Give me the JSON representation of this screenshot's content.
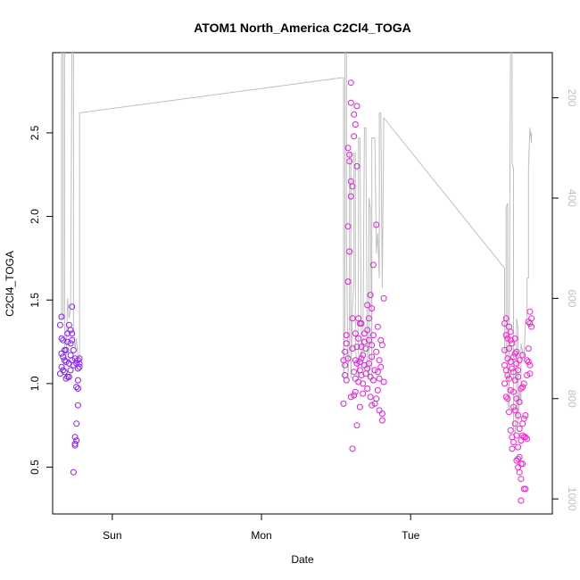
{
  "chart_data": {
    "type": "scatter",
    "title": "ATOM1 North_America C2Cl4_TOGA",
    "xlabel": "Date",
    "ylabel": "C2Cl4_TOGA",
    "x_ticks": [
      {
        "label": "Sun",
        "value": 0.0
      },
      {
        "label": "Mon",
        "value": 1.0
      },
      {
        "label": "Tue",
        "value": 2.0
      }
    ],
    "xlim": [
      -0.4,
      2.95
    ],
    "ylim": [
      0.22,
      2.98
    ],
    "y_ticks": [
      0.5,
      1.0,
      1.5,
      2.0,
      2.5
    ],
    "y2": {
      "reversed": true,
      "lim": [
        1030,
        110
      ],
      "ticks": [
        200,
        400,
        600,
        800,
        1000
      ],
      "line_color": "#bfbfbf"
    },
    "color_low": "#7a1fff",
    "color_high": "#ff1fd0",
    "points": [
      [
        -0.35,
        1.06
      ],
      [
        -0.35,
        1.35
      ],
      [
        -0.34,
        1.4
      ],
      [
        -0.34,
        1.27
      ],
      [
        -0.34,
        1.1
      ],
      [
        -0.34,
        1.18
      ],
      [
        -0.33,
        1.26
      ],
      [
        -0.33,
        1.16
      ],
      [
        -0.33,
        1.08
      ],
      [
        -0.32,
        1.2
      ],
      [
        -0.32,
        1.07
      ],
      [
        -0.32,
        1.14
      ],
      [
        -0.31,
        1.13
      ],
      [
        -0.31,
        1.03
      ],
      [
        -0.3,
        1.04
      ],
      [
        -0.3,
        1.3
      ],
      [
        -0.3,
        1.25
      ],
      [
        -0.29,
        1.35
      ],
      [
        -0.29,
        1.12
      ],
      [
        -0.29,
        1.04
      ],
      [
        -0.28,
        1.24
      ],
      [
        -0.28,
        1.08
      ],
      [
        -0.28,
        1.32
      ],
      [
        -0.27,
        1.3
      ],
      [
        -0.27,
        1.14
      ],
      [
        -0.27,
        1.46
      ],
      [
        -0.26,
        0.47
      ],
      [
        -0.26,
        1.2
      ],
      [
        -0.26,
        1.11
      ],
      [
        -0.25,
        0.64
      ],
      [
        -0.25,
        0.63
      ],
      [
        -0.25,
        0.68
      ],
      [
        -0.25,
        1.15
      ],
      [
        -0.24,
        0.66
      ],
      [
        -0.24,
        1.12
      ],
      [
        -0.24,
        0.98
      ],
      [
        -0.24,
        0.76
      ],
      [
        -0.23,
        0.87
      ],
      [
        -0.23,
        0.97
      ],
      [
        -0.23,
        1.09
      ],
      [
        -0.23,
        1.14
      ],
      [
        -0.23,
        1.02
      ],
      [
        -0.22,
        1.15
      ],
      [
        -0.22,
        1.12
      ],
      [
        -0.22,
        1.1
      ],
      [
        -0.27,
        1.26
      ],
      [
        -0.31,
        1.2
      ],
      [
        -0.28,
        1.17
      ],
      [
        1.55,
        0.88
      ],
      [
        1.55,
        1.14
      ],
      [
        1.56,
        1.19
      ],
      [
        1.56,
        1.05
      ],
      [
        1.56,
        1.11
      ],
      [
        1.57,
        1.29
      ],
      [
        1.57,
        1.24
      ],
      [
        1.57,
        1.02
      ],
      [
        1.58,
        2.41
      ],
      [
        1.58,
        1.94
      ],
      [
        1.58,
        1.61
      ],
      [
        1.58,
        1.15
      ],
      [
        1.59,
        2.37
      ],
      [
        1.59,
        2.33
      ],
      [
        1.59,
        1.79
      ],
      [
        1.6,
        2.8
      ],
      [
        1.6,
        2.68
      ],
      [
        1.6,
        2.21
      ],
      [
        1.6,
        2.12
      ],
      [
        1.6,
        0.92
      ],
      [
        1.61,
        0.61
      ],
      [
        1.61,
        2.18
      ],
      [
        1.61,
        1.21
      ],
      [
        1.61,
        1.39
      ],
      [
        1.62,
        2.61
      ],
      [
        1.62,
        2.48
      ],
      [
        1.62,
        1.07
      ],
      [
        1.62,
        0.93
      ],
      [
        1.63,
        2.55
      ],
      [
        1.63,
        1.14
      ],
      [
        1.63,
        1.03
      ],
      [
        1.63,
        0.95
      ],
      [
        1.64,
        2.66
      ],
      [
        1.64,
        2.3
      ],
      [
        1.64,
        1.22
      ],
      [
        1.64,
        1.12
      ],
      [
        1.64,
        0.75
      ],
      [
        1.65,
        1.39
      ],
      [
        1.65,
        1.27
      ],
      [
        1.65,
        1.01
      ],
      [
        1.66,
        1.08
      ],
      [
        1.66,
        0.86
      ],
      [
        1.66,
        1.13
      ],
      [
        1.67,
        1.36
      ],
      [
        1.67,
        1.15
      ],
      [
        1.67,
        1.22
      ],
      [
        1.67,
        1.05
      ],
      [
        1.68,
        0.94
      ],
      [
        1.68,
        1.17
      ],
      [
        1.68,
        1.0
      ],
      [
        1.69,
        1.3
      ],
      [
        1.69,
        1.25
      ],
      [
        1.69,
        1.11
      ],
      [
        1.7,
        1.06
      ],
      [
        1.7,
        1.21
      ],
      [
        1.71,
        1.32
      ],
      [
        1.71,
        0.97
      ],
      [
        1.71,
        1.09
      ],
      [
        1.72,
        1.39
      ],
      [
        1.72,
        1.12
      ],
      [
        1.72,
        1.26
      ],
      [
        1.73,
        0.92
      ],
      [
        1.73,
        1.04
      ],
      [
        1.73,
        1.53
      ],
      [
        1.74,
        1.23
      ],
      [
        1.74,
        0.87
      ],
      [
        1.74,
        1.16
      ],
      [
        1.75,
        1.71
      ],
      [
        1.75,
        1.29
      ],
      [
        1.75,
        1.02
      ],
      [
        1.76,
        0.88
      ],
      [
        1.76,
        1.08
      ],
      [
        1.77,
        1.95
      ],
      [
        1.77,
        1.19
      ],
      [
        1.77,
        0.91
      ],
      [
        1.78,
        1.34
      ],
      [
        1.78,
        1.07
      ],
      [
        1.78,
        0.96
      ],
      [
        1.79,
        1.14
      ],
      [
        1.79,
        1.03
      ],
      [
        1.79,
        0.84
      ],
      [
        1.8,
        1.26
      ],
      [
        1.8,
        1.1
      ],
      [
        1.81,
        1.23
      ],
      [
        1.81,
        0.78
      ],
      [
        1.81,
        0.82
      ],
      [
        1.82,
        1.51
      ],
      [
        1.82,
        1.01
      ],
      [
        1.74,
        1.45
      ],
      [
        1.71,
        1.47
      ],
      [
        1.66,
        1.36
      ],
      [
        1.63,
        1.3
      ],
      [
        2.63,
        1.0
      ],
      [
        2.63,
        1.36
      ],
      [
        2.63,
        1.2
      ],
      [
        2.63,
        1.11
      ],
      [
        2.64,
        1.39
      ],
      [
        2.64,
        1.29
      ],
      [
        2.64,
        1.08
      ],
      [
        2.64,
        0.92
      ],
      [
        2.65,
        1.27
      ],
      [
        2.65,
        1.15
      ],
      [
        2.65,
        1.05
      ],
      [
        2.65,
        0.91
      ],
      [
        2.66,
        0.83
      ],
      [
        2.66,
        1.34
      ],
      [
        2.66,
        1.21
      ],
      [
        2.66,
        1.03
      ],
      [
        2.67,
        1.26
      ],
      [
        2.67,
        1.13
      ],
      [
        2.67,
        0.96
      ],
      [
        2.67,
        0.72
      ],
      [
        2.68,
        0.68
      ],
      [
        2.68,
        1.09
      ],
      [
        2.68,
        0.61
      ],
      [
        2.68,
        1.24
      ],
      [
        2.69,
        0.86
      ],
      [
        2.69,
        1.16
      ],
      [
        2.69,
        0.95
      ],
      [
        2.69,
        1.07
      ],
      [
        2.7,
        0.76
      ],
      [
        2.7,
        0.84
      ],
      [
        2.7,
        1.27
      ],
      [
        2.7,
        1.02
      ],
      [
        2.71,
        0.54
      ],
      [
        2.71,
        0.69
      ],
      [
        2.71,
        0.91
      ],
      [
        2.71,
        1.12
      ],
      [
        2.71,
        1.19
      ],
      [
        2.72,
        0.5
      ],
      [
        2.72,
        0.55
      ],
      [
        2.72,
        0.81
      ],
      [
        2.72,
        1.08
      ],
      [
        2.72,
        0.62
      ],
      [
        2.73,
        0.47
      ],
      [
        2.73,
        0.56
      ],
      [
        2.73,
        0.73
      ],
      [
        2.73,
        0.89
      ],
      [
        2.73,
        1.14
      ],
      [
        2.74,
        0.52
      ],
      [
        2.74,
        0.66
      ],
      [
        2.74,
        0.97
      ],
      [
        2.74,
        0.3
      ],
      [
        2.74,
        0.43
      ],
      [
        2.75,
        0.52
      ],
      [
        2.75,
        0.69
      ],
      [
        2.75,
        0.76
      ],
      [
        2.75,
        0.98
      ],
      [
        2.75,
        1.17
      ],
      [
        2.76,
        0.68
      ],
      [
        2.76,
        0.79
      ],
      [
        2.76,
        0.37
      ],
      [
        2.77,
        0.68
      ],
      [
        2.77,
        0.81
      ],
      [
        2.77,
        0.37
      ],
      [
        2.78,
        0.67
      ],
      [
        2.78,
        1.14
      ],
      [
        2.78,
        1.05
      ],
      [
        2.79,
        1.13
      ],
      [
        2.79,
        1.21
      ],
      [
        2.79,
        1.37
      ],
      [
        2.8,
        1.11
      ],
      [
        2.8,
        1.36
      ],
      [
        2.8,
        1.43
      ],
      [
        2.8,
        1.06
      ],
      [
        2.81,
        1.39
      ],
      [
        2.81,
        1.34
      ],
      [
        2.7,
        1.18
      ],
      [
        2.67,
        1.31
      ],
      [
        2.76,
        1.0
      ],
      [
        2.72,
        1.04
      ],
      [
        2.69,
        0.65
      ]
    ],
    "y2_line": [
      [
        -0.34,
        80
      ],
      [
        -0.34,
        640
      ],
      [
        -0.33,
        640
      ],
      [
        -0.33,
        80
      ],
      [
        -0.32,
        80
      ],
      [
        -0.32,
        700
      ],
      [
        -0.31,
        720
      ],
      [
        -0.3,
        600
      ],
      [
        -0.29,
        640
      ],
      [
        -0.28,
        620
      ],
      [
        -0.27,
        80
      ],
      [
        -0.26,
        80
      ],
      [
        -0.26,
        660
      ],
      [
        -0.25,
        700
      ],
      [
        -0.24,
        680
      ],
      [
        -0.23,
        720
      ],
      [
        -0.23,
        730
      ],
      [
        -0.22,
        720
      ],
      [
        -0.22,
        230
      ],
      [
        1.54,
        160
      ],
      [
        1.55,
        160
      ],
      [
        1.55,
        760
      ],
      [
        1.56,
        640
      ],
      [
        1.56,
        80
      ],
      [
        1.57,
        80
      ],
      [
        1.57,
        480
      ],
      [
        1.58,
        760
      ],
      [
        1.59,
        680
      ],
      [
        1.59,
        310
      ],
      [
        1.6,
        310
      ],
      [
        1.6,
        760
      ],
      [
        1.61,
        620
      ],
      [
        1.62,
        560
      ],
      [
        1.62,
        310
      ],
      [
        1.63,
        310
      ],
      [
        1.63,
        700
      ],
      [
        1.65,
        760
      ],
      [
        1.65,
        280
      ],
      [
        1.66,
        280
      ],
      [
        1.67,
        720
      ],
      [
        1.68,
        700
      ],
      [
        1.69,
        260
      ],
      [
        1.7,
        260
      ],
      [
        1.71,
        740
      ],
      [
        1.72,
        760
      ],
      [
        1.72,
        400
      ],
      [
        1.73,
        420
      ],
      [
        1.74,
        760
      ],
      [
        1.74,
        280
      ],
      [
        1.76,
        280
      ],
      [
        1.77,
        500
      ],
      [
        1.77,
        510
      ],
      [
        1.78,
        470
      ],
      [
        1.79,
        560
      ],
      [
        1.79,
        230
      ],
      [
        1.8,
        230
      ],
      [
        1.81,
        580
      ],
      [
        1.82,
        240
      ],
      [
        2.63,
        540
      ],
      [
        2.63,
        700
      ],
      [
        2.64,
        720
      ],
      [
        2.64,
        420
      ],
      [
        2.65,
        410
      ],
      [
        2.65,
        810
      ],
      [
        2.66,
        820
      ],
      [
        2.66,
        740
      ],
      [
        2.67,
        80
      ],
      [
        2.68,
        80
      ],
      [
        2.68,
        330
      ],
      [
        2.69,
        340
      ],
      [
        2.69,
        860
      ],
      [
        2.7,
        870
      ],
      [
        2.71,
        820
      ],
      [
        2.71,
        640
      ],
      [
        2.72,
        660
      ],
      [
        2.72,
        850
      ],
      [
        2.73,
        780
      ],
      [
        2.74,
        810
      ],
      [
        2.74,
        690
      ],
      [
        2.76,
        720
      ],
      [
        2.77,
        650
      ],
      [
        2.78,
        640
      ],
      [
        2.78,
        560
      ],
      [
        2.79,
        560
      ],
      [
        2.79,
        340
      ],
      [
        2.8,
        260
      ],
      [
        2.81,
        290
      ],
      [
        2.81,
        270
      ]
    ]
  }
}
